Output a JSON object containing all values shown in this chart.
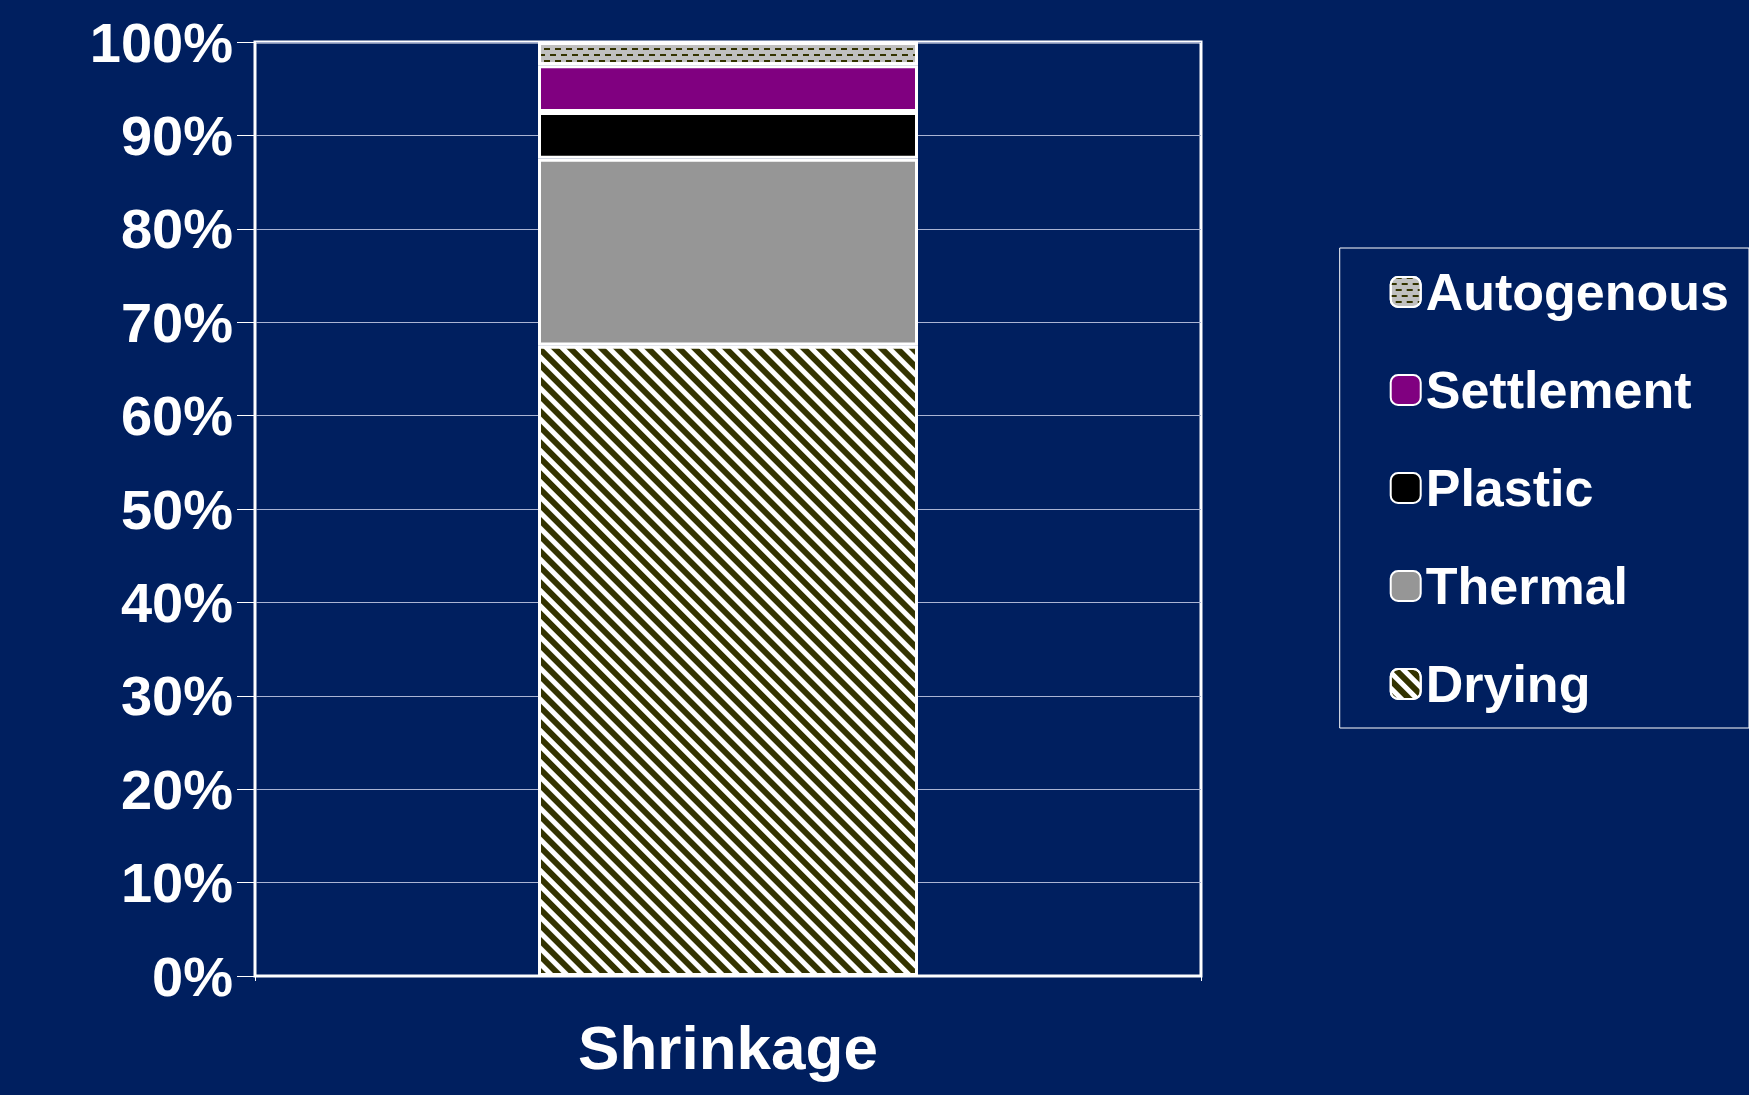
{
  "chart_data": {
    "type": "bar",
    "stacked": true,
    "categories": [
      "Shrinkage"
    ],
    "series": [
      {
        "name": "Drying",
        "color": "#333300",
        "values": [
          67.5
        ]
      },
      {
        "name": "Thermal",
        "color": "#969696",
        "values": [
          20
        ]
      },
      {
        "name": "Plastic",
        "color": "#000000",
        "values": [
          5
        ]
      },
      {
        "name": "Settlement",
        "color": "#800080",
        "values": [
          5
        ]
      },
      {
        "name": "Autogenous",
        "color": "#c0c0c0",
        "values": [
          2.5
        ]
      }
    ],
    "ylim": [
      0,
      100
    ],
    "yticks": [
      {
        "value": 0,
        "label": "0%"
      },
      {
        "value": 10,
        "label": "10%"
      },
      {
        "value": 20,
        "label": "20%"
      },
      {
        "value": 30,
        "label": "30%"
      },
      {
        "value": 40,
        "label": "40%"
      },
      {
        "value": 50,
        "label": "50%"
      },
      {
        "value": 60,
        "label": "60%"
      },
      {
        "value": 70,
        "label": "70%"
      },
      {
        "value": 80,
        "label": "80%"
      },
      {
        "value": 90,
        "label": "90%"
      },
      {
        "value": 100,
        "label": "100%"
      }
    ],
    "grid": "y",
    "legend": "right"
  }
}
